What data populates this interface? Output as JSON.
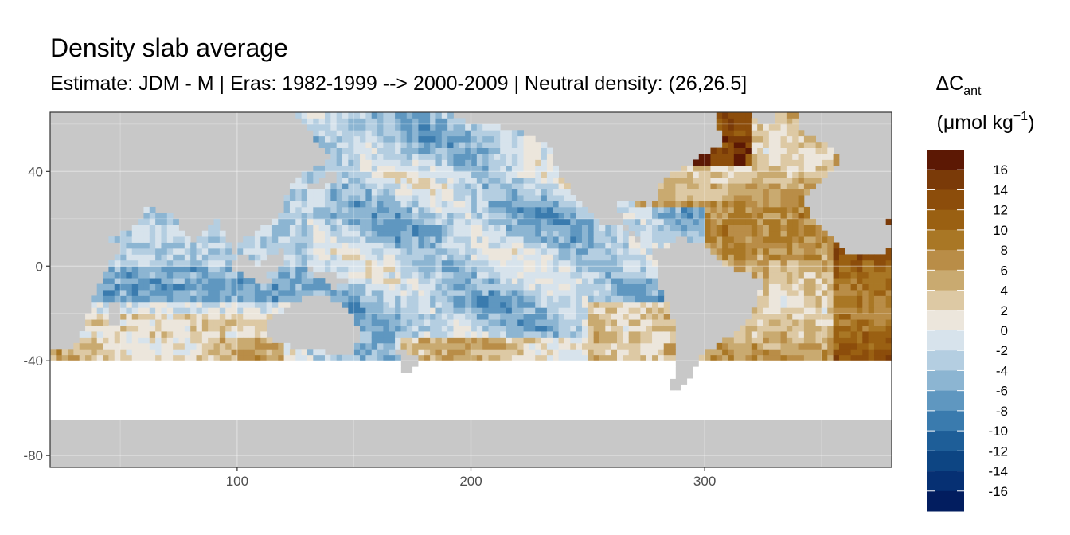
{
  "title": "Density slab average",
  "subtitle": "Estimate: JDM - M | Eras: 1982-1999 --> 2000-2009 | Neutral density: (26,26.5]",
  "legend": {
    "title_symbol": "ΔC",
    "title_sub": "ant",
    "unit_pre": "(μmol kg",
    "unit_sup": "−1",
    "unit_post": ")"
  },
  "chart_data": {
    "type": "heatmap",
    "x_ticks": [
      "100",
      "200",
      "300"
    ],
    "y_ticks": [
      "40",
      "0",
      "-40",
      "-80"
    ],
    "xlim": [
      20,
      380
    ],
    "ylim": [
      -85,
      65
    ],
    "color_breaks": [
      "16",
      "14",
      "12",
      "10",
      "8",
      "6",
      "4",
      "2",
      "0",
      "-2",
      "-4",
      "-6",
      "-8",
      "-10",
      "-12",
      "-14",
      "-16"
    ],
    "colors": [
      "#5c1804",
      "#7a3a08",
      "#8c4d0b",
      "#9a6012",
      "#a97725",
      "#b98d47",
      "#c9aa70",
      "#ddc9a4",
      "#ece6dc",
      "#d7e3ec",
      "#b4cee1",
      "#8cb5d2",
      "#5f97c0",
      "#3a7bae",
      "#1e5e98",
      "#0d4583",
      "#063073",
      "#021d5f"
    ],
    "land_color": "#c8c8c8"
  }
}
